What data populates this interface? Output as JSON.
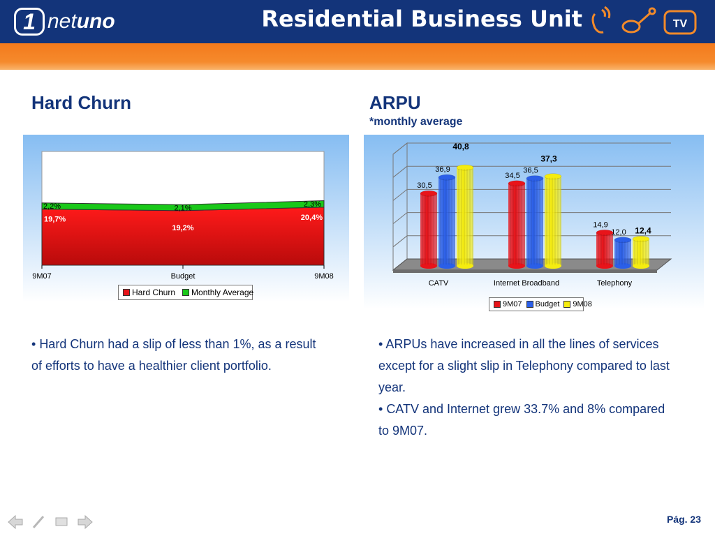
{
  "header": {
    "logo_badge": "1",
    "logo_text_light": "net",
    "logo_text_bold": "uno",
    "title": "Residential Business Unit",
    "icons": [
      "phone-icon",
      "broadband-icon",
      "tv-icon"
    ],
    "tv_label": "TV",
    "colors": {
      "header_bg": "#13347a",
      "band": "#f47a1c"
    }
  },
  "left": {
    "title": "Hard Churn",
    "bullets": [
      "Hard Churn had a slip of less than 1%, as a result of efforts to have a healthier client portfolio."
    ]
  },
  "right": {
    "title": "ARPU",
    "subtitle": "*monthly average",
    "bullets": [
      "ARPUs have increased in all the lines of services except for a slight slip in Telephony compared to last year.",
      "CATV and Internet grew 33.7% and 8% compared to 9M07."
    ]
  },
  "chart_data": [
    {
      "type": "area",
      "stacked": true,
      "categories": [
        "9M07",
        "Budget",
        "9M08"
      ],
      "series": [
        {
          "name": "Hard Churn",
          "values": [
            19.7,
            19.2,
            20.4
          ],
          "labels": [
            "19,7%",
            "19,2%",
            "20,4%"
          ],
          "color": "#e8141a"
        },
        {
          "name": "Monthly Average",
          "values": [
            2.2,
            2.1,
            2.3
          ],
          "labels": [
            "2,2%",
            "2,1%",
            "2,3%"
          ],
          "color": "#19c819"
        }
      ],
      "ylim": [
        0,
        40
      ],
      "grid": false,
      "legend": "bottom"
    },
    {
      "type": "bar",
      "style": "3d-cylinder",
      "categories": [
        "CATV",
        "Internet Broadband",
        "Telephony"
      ],
      "series": [
        {
          "name": "9M07",
          "values": [
            30.5,
            34.5,
            14.9
          ],
          "labels": [
            "30,5",
            "34,5",
            "14,9"
          ],
          "color": "#e8141a"
        },
        {
          "name": "Budget",
          "values": [
            36.9,
            36.5,
            12.0
          ],
          "labels": [
            "36,9",
            "36,5",
            "12,0"
          ],
          "color": "#2b5fe8"
        },
        {
          "name": "9M08",
          "values": [
            40.8,
            37.3,
            12.4
          ],
          "labels": [
            "40,8",
            "37,3",
            "12,4"
          ],
          "color": "#f5ec10"
        }
      ],
      "ylim": [
        0,
        45
      ],
      "grid": true,
      "legend": "bottom"
    }
  ],
  "nav": {
    "items": [
      "back-arrow-icon",
      "pen-icon",
      "screen-icon",
      "forward-arrow-icon"
    ]
  },
  "footer": {
    "page": "Pág. 23"
  }
}
